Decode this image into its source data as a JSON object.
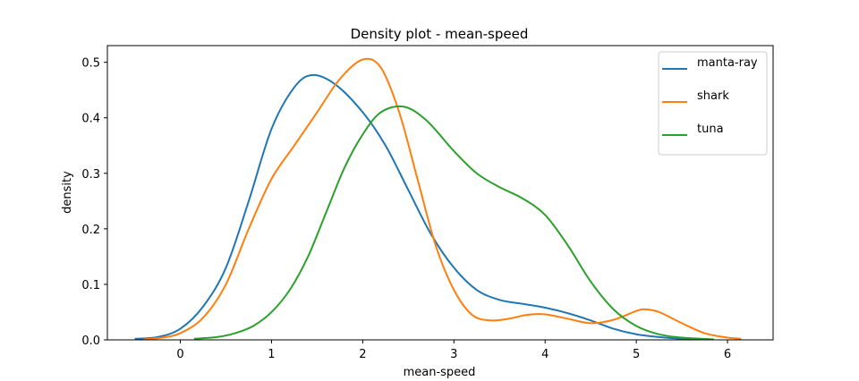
{
  "chart_data": {
    "type": "line",
    "title": "Density plot - mean-speed",
    "xlabel": "mean-speed",
    "ylabel": "density",
    "xlim": [
      -0.8,
      6.5
    ],
    "ylim": [
      0,
      0.53
    ],
    "xticks": [
      0,
      1,
      2,
      3,
      4,
      5,
      6
    ],
    "yticks": [
      0.0,
      0.1,
      0.2,
      0.3,
      0.4,
      0.5
    ],
    "xtick_labels": [
      "0",
      "1",
      "2",
      "3",
      "4",
      "5",
      "6"
    ],
    "ytick_labels": [
      "0.0",
      "0.1",
      "0.2",
      "0.3",
      "0.4",
      "0.5"
    ],
    "grid": false,
    "legend_position": "top-right",
    "series": [
      {
        "name": "manta-ray",
        "color": "#1f77b4",
        "x": [
          -0.5,
          -0.25,
          0.0,
          0.25,
          0.5,
          0.75,
          1.0,
          1.25,
          1.45,
          1.7,
          2.0,
          2.25,
          2.5,
          2.75,
          3.0,
          3.25,
          3.5,
          3.75,
          4.0,
          4.25,
          4.5,
          4.75,
          5.0,
          5.25,
          5.5,
          5.8
        ],
        "y": [
          0.002,
          0.005,
          0.02,
          0.06,
          0.13,
          0.25,
          0.38,
          0.455,
          0.477,
          0.46,
          0.41,
          0.35,
          0.27,
          0.19,
          0.13,
          0.09,
          0.072,
          0.065,
          0.058,
          0.048,
          0.035,
          0.02,
          0.01,
          0.005,
          0.002,
          0.001
        ]
      },
      {
        "name": "shark",
        "color": "#ff7f0e",
        "x": [
          -0.4,
          -0.2,
          0.0,
          0.25,
          0.5,
          0.75,
          1.0,
          1.25,
          1.5,
          1.75,
          2.0,
          2.2,
          2.4,
          2.6,
          2.8,
          3.0,
          3.2,
          3.4,
          3.6,
          3.8,
          4.0,
          4.25,
          4.5,
          4.75,
          5.0,
          5.1,
          5.25,
          5.5,
          5.75,
          6.0,
          6.15
        ],
        "y": [
          0.001,
          0.004,
          0.012,
          0.04,
          0.1,
          0.2,
          0.29,
          0.35,
          0.41,
          0.47,
          0.505,
          0.49,
          0.41,
          0.29,
          0.17,
          0.09,
          0.045,
          0.035,
          0.038,
          0.045,
          0.046,
          0.038,
          0.03,
          0.036,
          0.052,
          0.055,
          0.05,
          0.03,
          0.012,
          0.004,
          0.002
        ]
      },
      {
        "name": "tuna",
        "color": "#2ca02c",
        "x": [
          0.15,
          0.4,
          0.6,
          0.8,
          1.0,
          1.2,
          1.4,
          1.6,
          1.8,
          2.0,
          2.2,
          2.45,
          2.7,
          3.0,
          3.25,
          3.5,
          3.75,
          4.0,
          4.25,
          4.5,
          4.75,
          5.0,
          5.25,
          5.5,
          5.85
        ],
        "y": [
          0.002,
          0.005,
          0.012,
          0.025,
          0.05,
          0.09,
          0.15,
          0.23,
          0.31,
          0.37,
          0.41,
          0.42,
          0.395,
          0.34,
          0.3,
          0.275,
          0.255,
          0.225,
          0.17,
          0.105,
          0.055,
          0.025,
          0.01,
          0.004,
          0.001
        ]
      }
    ]
  }
}
